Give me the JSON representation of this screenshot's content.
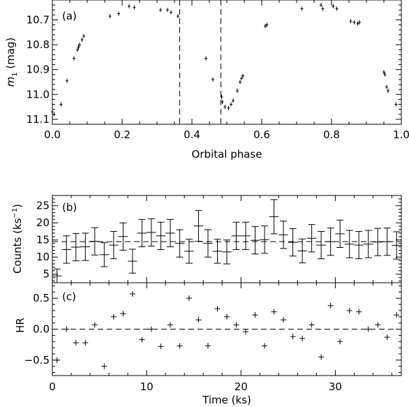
{
  "chart_data": [
    {
      "panel": "a",
      "type": "scatter",
      "panel_tag": "(a)",
      "xlabel": "Orbital phase",
      "ylabel": "m",
      "ylabel_sub": "1",
      "ylabel_unit": " (mag)",
      "xlim": [
        0.0,
        1.0
      ],
      "ylim": [
        11.12,
        10.62
      ],
      "y_inverted": true,
      "xticks": [
        "0.0",
        "0.2",
        "0.4",
        "0.6",
        "0.8",
        "1.0"
      ],
      "yticks": [
        "10.7",
        "10.8",
        "10.9",
        "11.0",
        "11.1"
      ],
      "vlines": [
        0.365,
        0.483
      ],
      "points": [
        {
          "x": 0.0,
          "y": 11.07
        },
        {
          "x": 0.005,
          "y": 11.08
        },
        {
          "x": 0.025,
          "y": 11.04
        },
        {
          "x": 0.042,
          "y": 10.945
        },
        {
          "x": 0.062,
          "y": 10.855
        },
        {
          "x": 0.072,
          "y": 10.82
        },
        {
          "x": 0.075,
          "y": 10.81
        },
        {
          "x": 0.078,
          "y": 10.8
        },
        {
          "x": 0.085,
          "y": 10.78
        },
        {
          "x": 0.09,
          "y": 10.765
        },
        {
          "x": 0.165,
          "y": 10.685
        },
        {
          "x": 0.19,
          "y": 10.675
        },
        {
          "x": 0.22,
          "y": 10.645
        },
        {
          "x": 0.235,
          "y": 10.65
        },
        {
          "x": 0.31,
          "y": 10.66
        },
        {
          "x": 0.33,
          "y": 10.66
        },
        {
          "x": 0.34,
          "y": 10.67
        },
        {
          "x": 0.36,
          "y": 10.685
        },
        {
          "x": 0.44,
          "y": 10.855
        },
        {
          "x": 0.46,
          "y": 10.94
        },
        {
          "x": 0.485,
          "y": 11.01
        },
        {
          "x": 0.487,
          "y": 11.03
        },
        {
          "x": 0.495,
          "y": 11.05
        },
        {
          "x": 0.505,
          "y": 11.055
        },
        {
          "x": 0.512,
          "y": 11.04
        },
        {
          "x": 0.518,
          "y": 11.025
        },
        {
          "x": 0.53,
          "y": 10.985
        },
        {
          "x": 0.538,
          "y": 10.95
        },
        {
          "x": 0.542,
          "y": 10.935
        },
        {
          "x": 0.546,
          "y": 10.925
        },
        {
          "x": 0.61,
          "y": 10.725
        },
        {
          "x": 0.615,
          "y": 10.72
        },
        {
          "x": 0.715,
          "y": 10.655
        },
        {
          "x": 0.77,
          "y": 10.64
        },
        {
          "x": 0.775,
          "y": 10.655
        },
        {
          "x": 0.805,
          "y": 10.645
        },
        {
          "x": 0.815,
          "y": 10.655
        },
        {
          "x": 0.855,
          "y": 10.705
        },
        {
          "x": 0.865,
          "y": 10.71
        },
        {
          "x": 0.875,
          "y": 10.715
        },
        {
          "x": 0.88,
          "y": 10.71
        },
        {
          "x": 0.95,
          "y": 10.91
        },
        {
          "x": 0.953,
          "y": 10.92
        },
        {
          "x": 0.958,
          "y": 10.97
        },
        {
          "x": 0.962,
          "y": 10.985
        },
        {
          "x": 0.985,
          "y": 11.04
        }
      ]
    },
    {
      "panel": "b",
      "type": "scatter",
      "panel_tag": "(b)",
      "ylabel": "Counts (ks",
      "ylabel_sup": "−1",
      "ylabel_close": ")",
      "xlim": [
        0,
        37
      ],
      "ylim": [
        2.5,
        28
      ],
      "yticks": [
        "5",
        "10",
        "15",
        "20",
        "25"
      ],
      "hline": 14.5,
      "points": [
        {
          "x": 0.5,
          "y": 4.5,
          "err": 2
        },
        {
          "x": 1.5,
          "y": 12.2,
          "err": 4
        },
        {
          "x": 2.5,
          "y": 12.9,
          "err": 4
        },
        {
          "x": 3.5,
          "y": 13.0,
          "err": 4
        },
        {
          "x": 4.5,
          "y": 14.6,
          "err": 4
        },
        {
          "x": 5.5,
          "y": 10.7,
          "err": 3.5
        },
        {
          "x": 6.5,
          "y": 13.5,
          "err": 4
        },
        {
          "x": 7.5,
          "y": 16.0,
          "err": 4
        },
        {
          "x": 8.5,
          "y": 8.8,
          "err": 3.5
        },
        {
          "x": 9.5,
          "y": 17.0,
          "err": 4
        },
        {
          "x": 10.5,
          "y": 17.2,
          "err": 4
        },
        {
          "x": 11.5,
          "y": 16.2,
          "err": 4
        },
        {
          "x": 12.5,
          "y": 17.0,
          "err": 4
        },
        {
          "x": 13.5,
          "y": 14.0,
          "err": 4
        },
        {
          "x": 14.5,
          "y": 11.7,
          "err": 3.5
        },
        {
          "x": 15.5,
          "y": 19.1,
          "err": 4.5
        },
        {
          "x": 16.5,
          "y": 14.0,
          "err": 4
        },
        {
          "x": 17.5,
          "y": 11.7,
          "err": 3.5
        },
        {
          "x": 18.5,
          "y": 11.5,
          "err": 3.5
        },
        {
          "x": 19.5,
          "y": 16.2,
          "err": 4
        },
        {
          "x": 20.5,
          "y": 16.2,
          "err": 4
        },
        {
          "x": 21.5,
          "y": 14.9,
          "err": 4
        },
        {
          "x": 22.5,
          "y": 15.1,
          "err": 4
        },
        {
          "x": 23.5,
          "y": 21.8,
          "err": 5
        },
        {
          "x": 24.5,
          "y": 16.5,
          "err": 4
        },
        {
          "x": 25.5,
          "y": 14.3,
          "err": 4
        },
        {
          "x": 26.5,
          "y": 11.8,
          "err": 3.5
        },
        {
          "x": 27.5,
          "y": 15.5,
          "err": 4
        },
        {
          "x": 28.5,
          "y": 13.5,
          "err": 4
        },
        {
          "x": 29.5,
          "y": 14.5,
          "err": 4
        },
        {
          "x": 30.5,
          "y": 16.8,
          "err": 4
        },
        {
          "x": 31.5,
          "y": 13.8,
          "err": 4
        },
        {
          "x": 32.5,
          "y": 13.5,
          "err": 4
        },
        {
          "x": 33.5,
          "y": 13.8,
          "err": 4
        },
        {
          "x": 34.5,
          "y": 14.4,
          "err": 4
        },
        {
          "x": 35.5,
          "y": 14.5,
          "err": 4
        },
        {
          "x": 36.5,
          "y": 13.4,
          "err": 4
        }
      ]
    },
    {
      "panel": "c",
      "type": "scatter",
      "panel_tag": "(c)",
      "xlabel": "Time (ks)",
      "ylabel": "HR",
      "xlim": [
        0,
        37
      ],
      "ylim": [
        -0.75,
        0.75
      ],
      "xticks": [
        "0",
        "10",
        "20",
        "30"
      ],
      "yticks": [
        "−0.5",
        "0.0",
        "0.5"
      ],
      "hline": 0.0,
      "points": [
        {
          "x": 0.5,
          "y": -0.5
        },
        {
          "x": 1.5,
          "y": 0.0
        },
        {
          "x": 2.5,
          "y": -0.22
        },
        {
          "x": 3.5,
          "y": -0.22
        },
        {
          "x": 4.5,
          "y": 0.07
        },
        {
          "x": 5.5,
          "y": -0.6
        },
        {
          "x": 6.5,
          "y": 0.2
        },
        {
          "x": 7.5,
          "y": 0.25
        },
        {
          "x": 8.5,
          "y": 0.57
        },
        {
          "x": 9.5,
          "y": -0.17
        },
        {
          "x": 10.5,
          "y": 0.0
        },
        {
          "x": 11.5,
          "y": -0.28
        },
        {
          "x": 12.5,
          "y": 0.07
        },
        {
          "x": 13.5,
          "y": -0.27
        },
        {
          "x": 14.5,
          "y": 0.5
        },
        {
          "x": 15.5,
          "y": 0.15
        },
        {
          "x": 16.5,
          "y": -0.27
        },
        {
          "x": 17.5,
          "y": 0.33
        },
        {
          "x": 18.5,
          "y": 0.2
        },
        {
          "x": 19.5,
          "y": 0.07
        },
        {
          "x": 20.5,
          "y": -0.04
        },
        {
          "x": 21.5,
          "y": 0.23
        },
        {
          "x": 22.5,
          "y": -0.27
        },
        {
          "x": 23.5,
          "y": 0.28
        },
        {
          "x": 24.5,
          "y": 0.15
        },
        {
          "x": 25.5,
          "y": -0.12
        },
        {
          "x": 26.5,
          "y": -0.15
        },
        {
          "x": 27.5,
          "y": 0.07
        },
        {
          "x": 28.5,
          "y": -0.45
        },
        {
          "x": 29.5,
          "y": 0.38
        },
        {
          "x": 30.5,
          "y": -0.2
        },
        {
          "x": 31.5,
          "y": 0.3
        },
        {
          "x": 32.5,
          "y": 0.28
        },
        {
          "x": 33.5,
          "y": 0.0
        },
        {
          "x": 34.5,
          "y": 0.07
        },
        {
          "x": 35.5,
          "y": -0.13
        },
        {
          "x": 36.5,
          "y": 0.23
        }
      ]
    }
  ]
}
